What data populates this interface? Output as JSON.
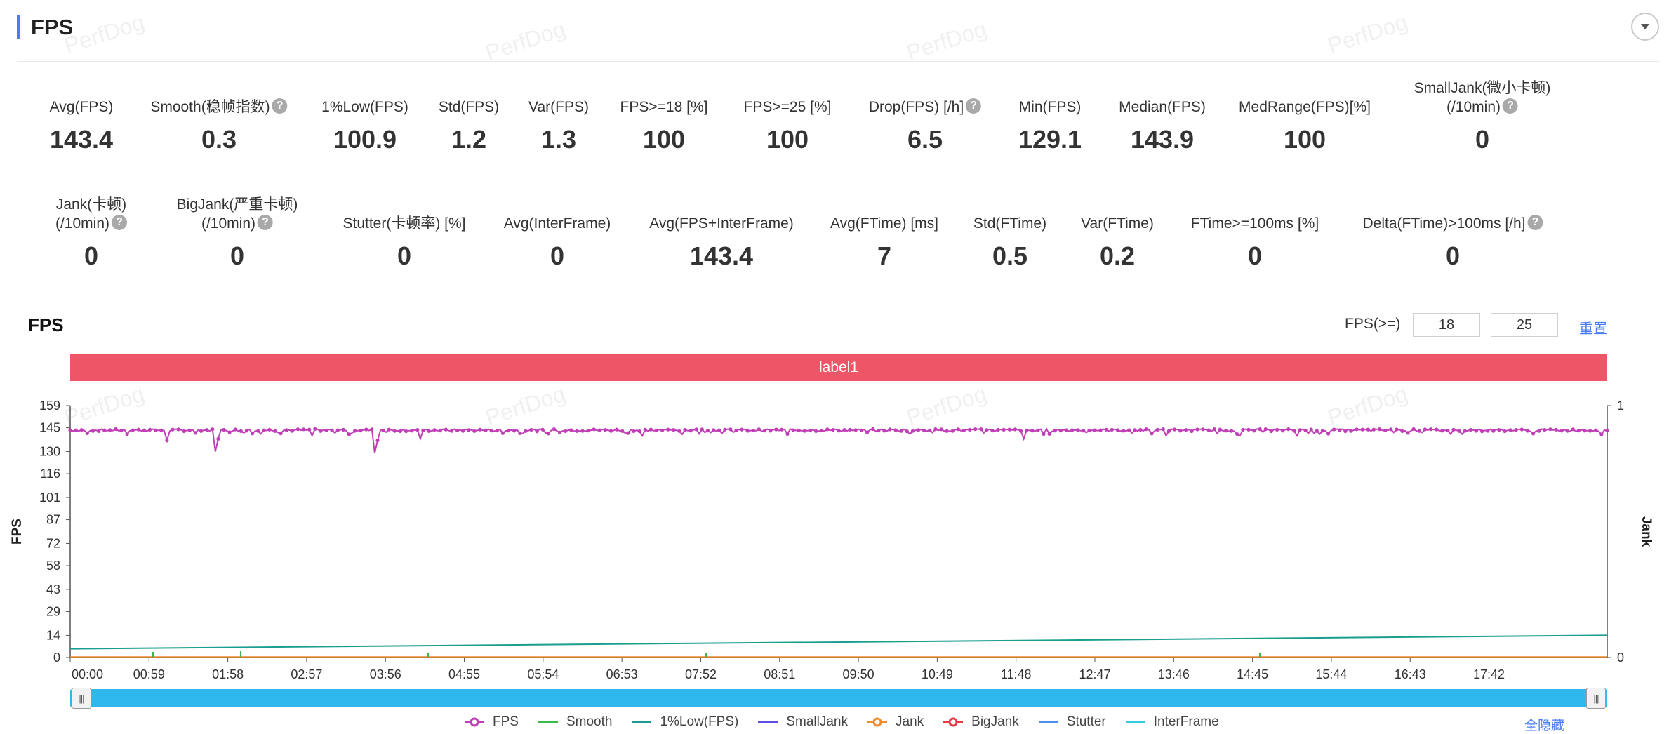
{
  "header": {
    "title": "FPS"
  },
  "watermark": "PerfDog",
  "stats_row1": [
    {
      "label": "Avg(FPS)",
      "value": "143.4",
      "help": false
    },
    {
      "label": "Smooth(稳帧指数)",
      "value": "0.3",
      "help": true
    },
    {
      "label": "1%Low(FPS)",
      "value": "100.9",
      "help": false
    },
    {
      "label": "Std(FPS)",
      "value": "1.2",
      "help": false
    },
    {
      "label": "Var(FPS)",
      "value": "1.3",
      "help": false
    },
    {
      "label": "FPS>=18 [%]",
      "value": "100",
      "help": false
    },
    {
      "label": "FPS>=25 [%]",
      "value": "100",
      "help": false
    },
    {
      "label": "Drop(FPS) [/h]",
      "value": "6.5",
      "help": true
    },
    {
      "label": "Min(FPS)",
      "value": "129.1",
      "help": false
    },
    {
      "label": "Median(FPS)",
      "value": "143.9",
      "help": false
    },
    {
      "label": "MedRange(FPS)[%]",
      "value": "100",
      "help": false
    },
    {
      "label": "SmallJank(微小卡顿)",
      "label2": "(/10min)",
      "value": "0",
      "help": true
    }
  ],
  "stats_row2": [
    {
      "label": "Jank(卡顿)",
      "label2": "(/10min)",
      "value": "0",
      "help": true
    },
    {
      "label": "BigJank(严重卡顿)",
      "label2": "(/10min)",
      "value": "0",
      "help": true
    },
    {
      "label": "Stutter(卡顿率) [%]",
      "value": "0",
      "help": false
    },
    {
      "label": "Avg(InterFrame)",
      "value": "0",
      "help": false
    },
    {
      "label": "Avg(FPS+InterFrame)",
      "value": "143.4",
      "help": false
    },
    {
      "label": "Avg(FTime) [ms]",
      "value": "7",
      "help": false
    },
    {
      "label": "Std(FTime)",
      "value": "0.5",
      "help": false
    },
    {
      "label": "Var(FTime)",
      "value": "0.2",
      "help": false
    },
    {
      "label": "FTime>=100ms [%]",
      "value": "0",
      "help": false
    },
    {
      "label": "Delta(FTime)>100ms [/h]",
      "value": "0",
      "help": true
    }
  ],
  "chart_section": {
    "title": "FPS",
    "threshold_label": "FPS(>=)",
    "threshold1": "18",
    "threshold2": "25",
    "reset_label": "重置",
    "band_label": "label1",
    "hide_all_label": "全隐藏"
  },
  "chart_data": {
    "type": "line",
    "ylabel": "FPS",
    "y2label": "Jank",
    "y_ticks": [
      "159",
      "145",
      "130",
      "116",
      "101",
      "87",
      "72",
      "58",
      "43",
      "29",
      "14",
      "0"
    ],
    "y_range": [
      0,
      159
    ],
    "y2_ticks": [
      "1",
      "0"
    ],
    "y2_range": [
      0,
      1
    ],
    "x_ticks": [
      "00:00",
      "00:59",
      "01:58",
      "02:57",
      "03:56",
      "04:55",
      "05:54",
      "06:53",
      "07:52",
      "08:51",
      "09:50",
      "10:49",
      "11:48",
      "12:47",
      "13:46",
      "14:45",
      "15:44",
      "16:43",
      "17:42"
    ],
    "x_range_seconds": [
      0,
      1080
    ],
    "series": [
      {
        "name": "FPS",
        "color": "#c13fb6",
        "baseline": 143.5,
        "dips": [
          {
            "t": 68,
            "v": 137
          },
          {
            "t": 102,
            "v": 130
          },
          {
            "t": 104,
            "v": 138
          },
          {
            "t": 170,
            "v": 140
          },
          {
            "t": 214,
            "v": 129
          },
          {
            "t": 216,
            "v": 137
          },
          {
            "t": 245,
            "v": 138
          },
          {
            "t": 402,
            "v": 140
          },
          {
            "t": 590,
            "v": 141
          },
          {
            "t": 670,
            "v": 138
          },
          {
            "t": 770,
            "v": 140
          },
          {
            "t": 822,
            "v": 140
          },
          {
            "t": 862,
            "v": 140
          },
          {
            "t": 970,
            "v": 141
          }
        ]
      },
      {
        "name": "Smooth",
        "color": "#3db84a"
      },
      {
        "name": "1%Low(FPS)",
        "color": "#1a9e8f",
        "start": 5.5,
        "end": 14
      },
      {
        "name": "SmallJank",
        "color": "#5b4fe0"
      },
      {
        "name": "Jank",
        "color": "#f08c2e"
      },
      {
        "name": "BigJank",
        "color": "#e53946"
      },
      {
        "name": "Stutter",
        "color": "#4a8ff0"
      },
      {
        "name": "InterFrame",
        "color": "#35c8e0"
      }
    ],
    "grid": false,
    "legend": "bottom"
  }
}
